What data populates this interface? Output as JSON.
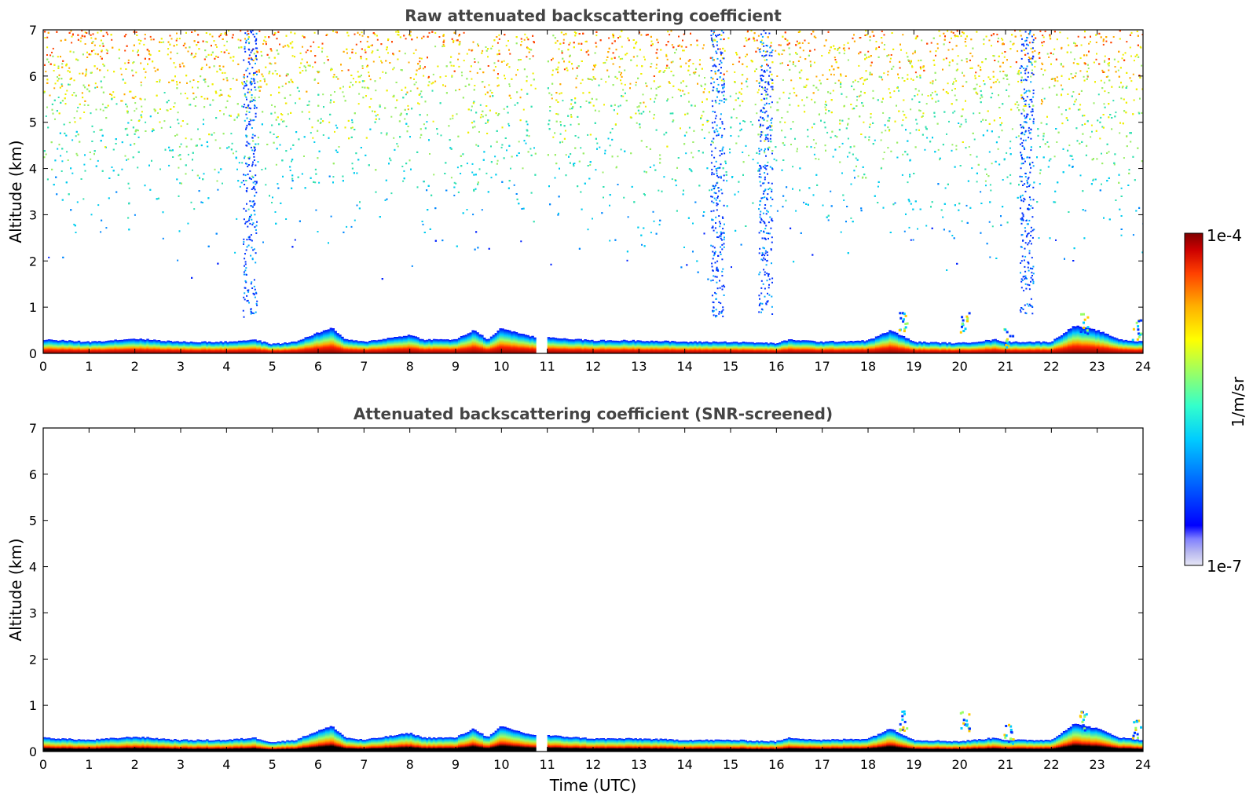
{
  "chart_data": [
    {
      "type": "heatmap",
      "title": "Raw attenuated backscattering coefficient",
      "xlabel": "",
      "ylabel": "Altitude (km)",
      "xlim": [
        0,
        24
      ],
      "ylim": [
        0,
        7
      ],
      "xticks": [
        "0",
        "1",
        "2",
        "3",
        "4",
        "5",
        "6",
        "7",
        "8",
        "9",
        "10",
        "11",
        "12",
        "13",
        "14",
        "15",
        "16",
        "17",
        "18",
        "19",
        "20",
        "21",
        "22",
        "23",
        "24"
      ],
      "yticks": [
        "0",
        "1",
        "2",
        "3",
        "4",
        "5",
        "6",
        "7"
      ],
      "data_gap_utc": [
        10.75,
        11.0
      ],
      "noise_columns_utc": [
        4.5,
        14.7,
        15.75,
        21.45
      ],
      "boundary_layer_top_km": [
        [
          0,
          0.3
        ],
        [
          1,
          0.25
        ],
        [
          2,
          0.32
        ],
        [
          3,
          0.25
        ],
        [
          4,
          0.25
        ],
        [
          4.6,
          0.3
        ],
        [
          5,
          0.2
        ],
        [
          5.5,
          0.25
        ],
        [
          6,
          0.45
        ],
        [
          6.3,
          0.55
        ],
        [
          6.6,
          0.3
        ],
        [
          7,
          0.25
        ],
        [
          8,
          0.4
        ],
        [
          8.3,
          0.3
        ],
        [
          9,
          0.3
        ],
        [
          9.4,
          0.5
        ],
        [
          9.7,
          0.3
        ],
        [
          10,
          0.55
        ],
        [
          10.5,
          0.4
        ],
        [
          10.75,
          0.35
        ],
        [
          11,
          0.35
        ],
        [
          12,
          0.28
        ],
        [
          13,
          0.28
        ],
        [
          14,
          0.25
        ],
        [
          15,
          0.25
        ],
        [
          16,
          0.22
        ],
        [
          16.3,
          0.3
        ],
        [
          17,
          0.25
        ],
        [
          18,
          0.28
        ],
        [
          18.5,
          0.5
        ],
        [
          19,
          0.25
        ],
        [
          20,
          0.22
        ],
        [
          20.8,
          0.3
        ],
        [
          21,
          0.25
        ],
        [
          22,
          0.25
        ],
        [
          22.5,
          0.6
        ],
        [
          23,
          0.5
        ],
        [
          23.5,
          0.3
        ],
        [
          24,
          0.25
        ]
      ],
      "cloud_features": [
        {
          "t": 18.75,
          "alt_km": 0.9
        },
        {
          "t": 20.1,
          "alt_km": 0.9
        },
        {
          "t": 21.05,
          "alt_km": 0.6
        },
        {
          "t": 22.7,
          "alt_km": 0.9
        },
        {
          "t": 23.85,
          "alt_km": 0.75
        }
      ]
    },
    {
      "type": "heatmap",
      "title": "Attenuated backscattering coefficient (SNR-screened)",
      "xlabel": "Time (UTC)",
      "ylabel": "Altitude (km)",
      "xlim": [
        0,
        24
      ],
      "ylim": [
        0,
        7
      ],
      "xticks": [
        "0",
        "1",
        "2",
        "3",
        "4",
        "5",
        "6",
        "7",
        "8",
        "9",
        "10",
        "11",
        "12",
        "13",
        "14",
        "15",
        "16",
        "17",
        "18",
        "19",
        "20",
        "21",
        "22",
        "23",
        "24"
      ],
      "yticks": [
        "0",
        "1",
        "2",
        "3",
        "4",
        "5",
        "6",
        "7"
      ],
      "data_gap_utc": [
        10.75,
        11.0
      ]
    }
  ],
  "colorbar": {
    "label": "1/m/sr",
    "min_label": "1e-7",
    "max_label": "1e-4",
    "scale": "log",
    "colormap": [
      "#e6e6f5",
      "#b8b8f0",
      "#8080ff",
      "#0000ff",
      "#0066ff",
      "#00ccff",
      "#33ffcc",
      "#99ff66",
      "#ffff00",
      "#ffb000",
      "#ff4000",
      "#cc0000",
      "#800000"
    ]
  }
}
